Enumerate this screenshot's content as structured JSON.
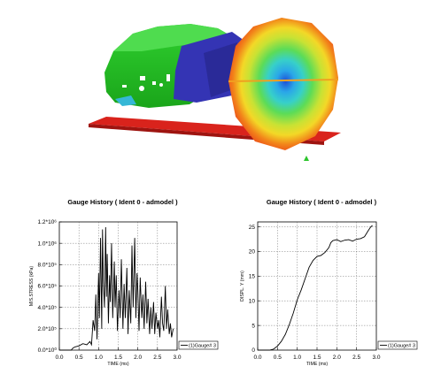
{
  "chart_data": [
    {
      "type": "line",
      "title": "Gauge History ( Ident 0 - admodel )",
      "xlabel": "TIME (ms)",
      "ylabel": "MIS.STRESS (kPa)",
      "xlim": [
        0.0,
        3.0
      ],
      "ylim": [
        0,
        1200000
      ],
      "xticks": [
        "0.0",
        "0.5",
        "1.0",
        "1.5",
        "2.0",
        "2.5",
        "3.0"
      ],
      "yticks": [
        "0.0*10⁰",
        "2.0*10⁵",
        "4.0*10⁵",
        "6.0*10⁵",
        "8.0*10⁵",
        "1.0*10⁶",
        "1.2*10⁶"
      ],
      "yticks_values": [
        0,
        200000,
        400000,
        600000,
        800000,
        1000000,
        1200000
      ],
      "grid": true,
      "legend": "bottom-right",
      "series": [
        {
          "name": "(1)Gauge# 3",
          "x": [
            0.0,
            0.3,
            0.35,
            0.4,
            0.5,
            0.6,
            0.7,
            0.78,
            0.82,
            0.86,
            0.9,
            0.93,
            0.96,
            1.0,
            1.02,
            1.05,
            1.08,
            1.1,
            1.12,
            1.15,
            1.18,
            1.2,
            1.22,
            1.25,
            1.28,
            1.3,
            1.33,
            1.36,
            1.4,
            1.42,
            1.45,
            1.48,
            1.52,
            1.55,
            1.58,
            1.62,
            1.65,
            1.68,
            1.72,
            1.75,
            1.78,
            1.82,
            1.85,
            1.88,
            1.92,
            1.95,
            1.98,
            2.0,
            2.03,
            2.06,
            2.1,
            2.13,
            2.16,
            2.2,
            2.23,
            2.26,
            2.3,
            2.33,
            2.36,
            2.4,
            2.43,
            2.46,
            2.5,
            2.53,
            2.56,
            2.6,
            2.63,
            2.66,
            2.7,
            2.73,
            2.76,
            2.8,
            2.83,
            2.86,
            2.9
          ],
          "values": [
            0,
            0,
            20000,
            30000,
            40000,
            60000,
            50000,
            80000,
            50000,
            280000,
            180000,
            520000,
            100000,
            720000,
            300000,
            1050000,
            200000,
            1130000,
            650000,
            400000,
            1150000,
            500000,
            900000,
            250000,
            700000,
            450000,
            1000000,
            300000,
            830000,
            400000,
            700000,
            180000,
            560000,
            300000,
            850000,
            200000,
            620000,
            300000,
            770000,
            150000,
            560000,
            250000,
            980000,
            400000,
            1050000,
            300000,
            720000,
            550000,
            180000,
            680000,
            300000,
            520000,
            200000,
            640000,
            250000,
            480000,
            150000,
            400000,
            200000,
            450000,
            150000,
            350000,
            200000,
            280000,
            120000,
            500000,
            250000,
            180000,
            600000,
            200000,
            380000,
            150000,
            250000,
            120000,
            200000
          ]
        }
      ]
    },
    {
      "type": "line",
      "title": "Gauge History ( Ident 0 - admodel )",
      "xlabel": "TIME (ms)",
      "ylabel": "DISPL. Y (mm)",
      "xlim": [
        0.0,
        3.0
      ],
      "ylim": [
        0,
        26
      ],
      "xticks": [
        "0.0",
        "0.5",
        "1.0",
        "1.5",
        "2.0",
        "2.5",
        "3.0"
      ],
      "yticks": [
        "0",
        "5",
        "10",
        "15",
        "20",
        "25"
      ],
      "yticks_values": [
        0,
        5,
        10,
        15,
        20,
        25
      ],
      "grid": true,
      "legend": "bottom-right",
      "series": [
        {
          "name": "(1)Gauge# 3",
          "x": [
            0.0,
            0.3,
            0.4,
            0.5,
            0.6,
            0.7,
            0.8,
            0.9,
            1.0,
            1.1,
            1.2,
            1.3,
            1.4,
            1.5,
            1.6,
            1.7,
            1.8,
            1.85,
            1.9,
            2.0,
            2.1,
            2.2,
            2.3,
            2.4,
            2.5,
            2.6,
            2.7,
            2.8,
            2.85,
            2.9
          ],
          "values": [
            0,
            0,
            0.2,
            0.8,
            1.8,
            3.2,
            5.2,
            7.5,
            10.2,
            12.2,
            14.5,
            16.8,
            18.2,
            19.0,
            19.2,
            19.8,
            20.8,
            21.8,
            22.2,
            22.4,
            22.0,
            22.3,
            22.4,
            22.1,
            22.5,
            22.6,
            23.0,
            24.3,
            24.9,
            25.3
          ]
        }
      ]
    }
  ]
}
